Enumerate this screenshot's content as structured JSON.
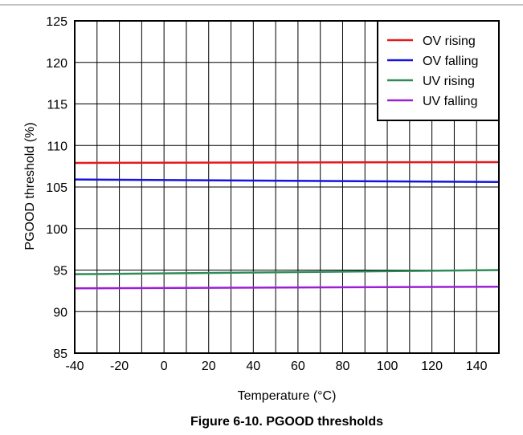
{
  "chart_data": {
    "type": "line",
    "title": "Figure 6-10. PGOOD thresholds",
    "xlabel": "Temperature (°C)",
    "ylabel": "PGOOD threshold (%)",
    "xlim": [
      -40,
      150
    ],
    "ylim": [
      85,
      125
    ],
    "x_ticks": [
      -40,
      -20,
      0,
      20,
      40,
      60,
      80,
      100,
      120,
      140
    ],
    "x_minor_step": 10,
    "y_ticks": [
      85,
      90,
      95,
      100,
      105,
      110,
      115,
      120,
      125
    ],
    "grid": true,
    "legend_position": "top-right",
    "series": [
      {
        "name": "OV rising",
        "color": "#e8191c",
        "x": [
          -40,
          150
        ],
        "y": [
          107.9,
          108.0
        ]
      },
      {
        "name": "OV falling",
        "color": "#1414dc",
        "x": [
          -40,
          150
        ],
        "y": [
          105.9,
          105.6
        ]
      },
      {
        "name": "UV rising",
        "color": "#2e8b57",
        "x": [
          -40,
          150
        ],
        "y": [
          94.5,
          95.0
        ]
      },
      {
        "name": "UV falling",
        "color": "#9b1fd6",
        "x": [
          -40,
          150
        ],
        "y": [
          92.8,
          93.0
        ]
      }
    ]
  }
}
